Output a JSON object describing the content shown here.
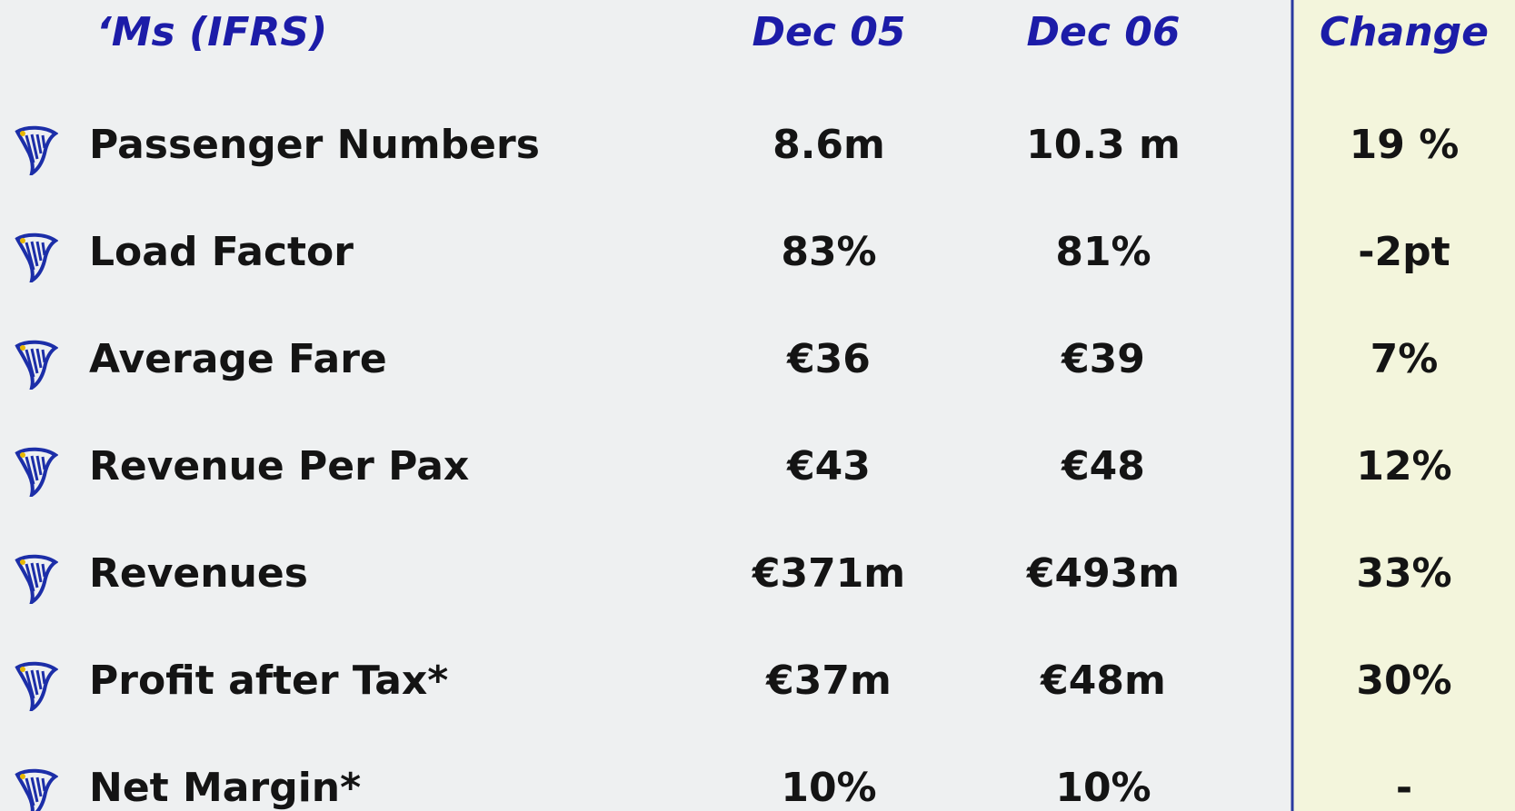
{
  "table": {
    "header": [
      "‘Ms (IFRS)",
      "Dec 05",
      "Dec 06",
      "Change"
    ],
    "rows": [
      [
        "Passenger Numbers",
        "8.6m",
        "10.3 m",
        "19 %"
      ],
      [
        "Load Factor",
        "83%",
        "81%",
        "-2pt"
      ],
      [
        "Average Fare",
        "€36",
        "€39",
        "7%"
      ],
      [
        "Revenue Per Pax",
        "€43",
        "€48",
        "12%"
      ],
      [
        "Revenues",
        "€371m",
        "€493m",
        "33%"
      ],
      [
        "Profit after Tax*",
        "€37m",
        "€48m",
        "30%"
      ],
      [
        "Net Margin*",
        "10%",
        "10%",
        "-"
      ]
    ]
  }
}
